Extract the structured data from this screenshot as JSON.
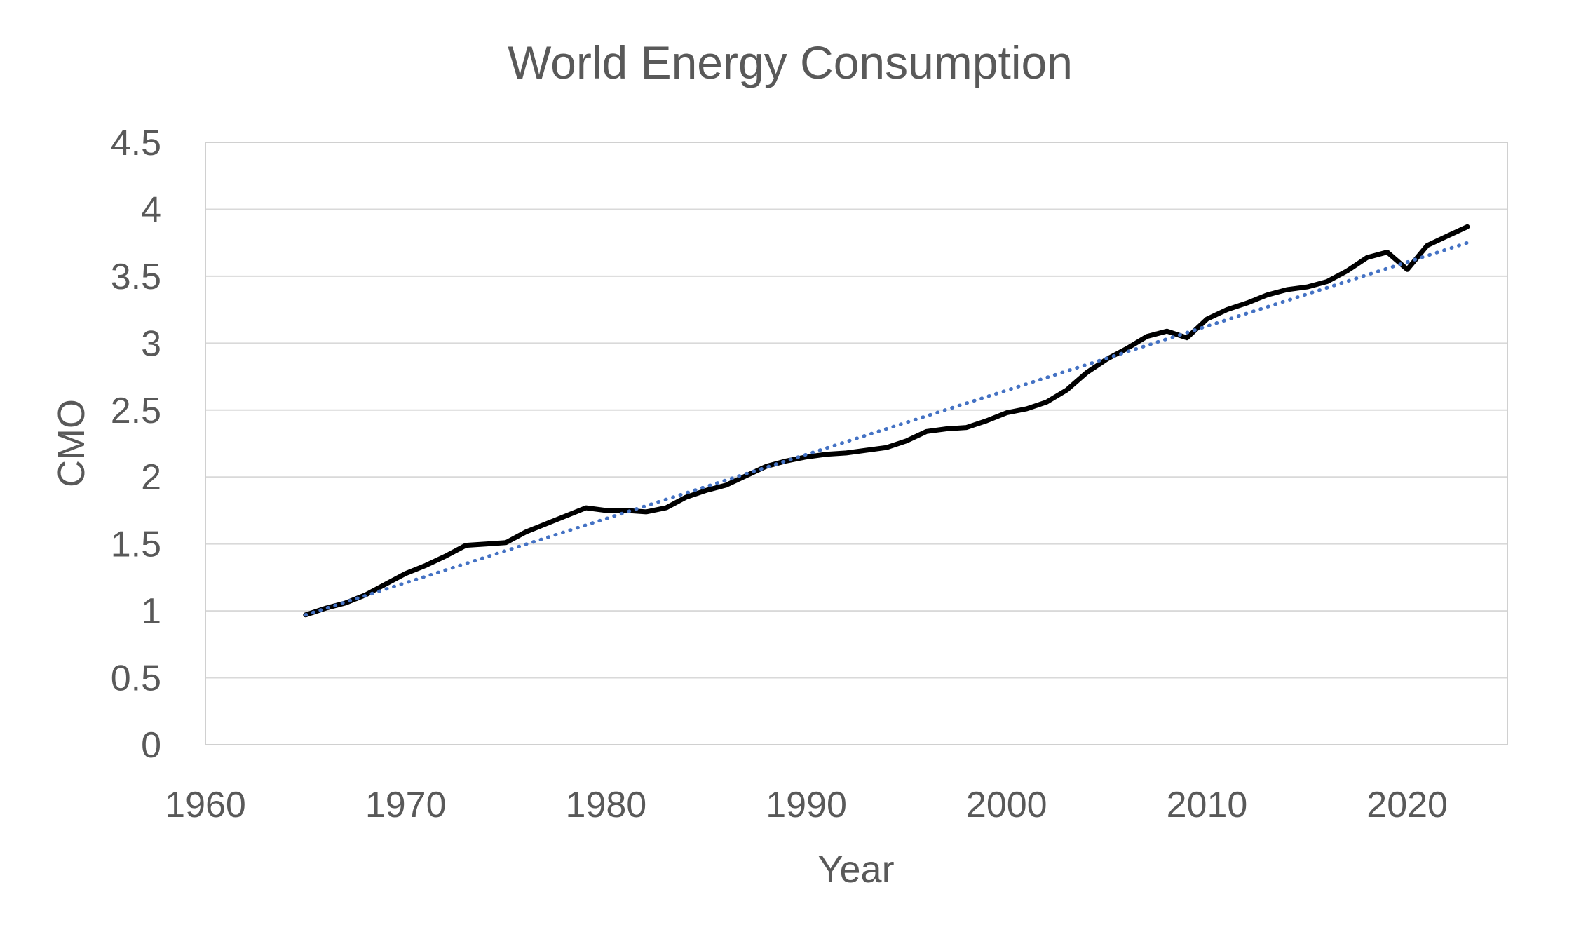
{
  "chart_data": {
    "type": "line",
    "title": "World Energy Consumption",
    "xlabel": "Year",
    "ylabel": "CMO",
    "xlim": [
      1960,
      2025
    ],
    "ylim": [
      0,
      4.5
    ],
    "x_ticks": [
      "1960",
      "1970",
      "1980",
      "1990",
      "2000",
      "2010",
      "2020"
    ],
    "y_ticks": [
      "0",
      "0.5",
      "1",
      "1.5",
      "2",
      "2.5",
      "3",
      "3.5",
      "4",
      "4.5"
    ],
    "grid": "horizontal",
    "legend": "none",
    "series": [
      {
        "style": "solid",
        "color": "#000000",
        "x": [
          1965,
          1966,
          1967,
          1968,
          1969,
          1970,
          1971,
          1972,
          1973,
          1974,
          1975,
          1976,
          1977,
          1978,
          1979,
          1980,
          1981,
          1982,
          1983,
          1984,
          1985,
          1986,
          1987,
          1988,
          1989,
          1990,
          1991,
          1992,
          1993,
          1994,
          1995,
          1996,
          1997,
          1998,
          1999,
          2000,
          2001,
          2002,
          2003,
          2004,
          2005,
          2006,
          2007,
          2008,
          2009,
          2010,
          2011,
          2012,
          2013,
          2014,
          2015,
          2016,
          2017,
          2018,
          2019,
          2020,
          2021,
          2022,
          2023
        ],
        "y": [
          0.97,
          1.02,
          1.06,
          1.12,
          1.2,
          1.28,
          1.34,
          1.41,
          1.49,
          1.5,
          1.51,
          1.59,
          1.65,
          1.71,
          1.77,
          1.75,
          1.75,
          1.74,
          1.77,
          1.85,
          1.9,
          1.94,
          2.01,
          2.08,
          2.12,
          2.15,
          2.17,
          2.18,
          2.2,
          2.22,
          2.27,
          2.34,
          2.36,
          2.37,
          2.42,
          2.48,
          2.51,
          2.56,
          2.65,
          2.78,
          2.88,
          2.96,
          3.05,
          3.09,
          3.04,
          3.18,
          3.25,
          3.3,
          3.36,
          3.4,
          3.42,
          3.46,
          3.54,
          3.64,
          3.68,
          3.55,
          3.73,
          3.8,
          3.87
        ]
      },
      {
        "style": "dotted",
        "color": "#4472c4",
        "x": [
          1965,
          2023
        ],
        "y": [
          0.97,
          3.75
        ]
      }
    ]
  }
}
